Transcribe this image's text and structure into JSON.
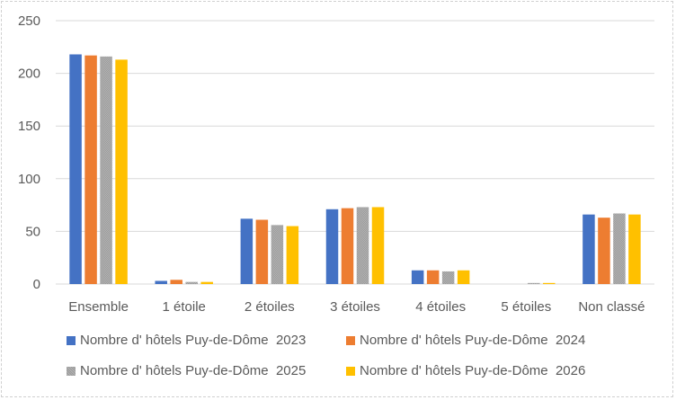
{
  "chart_data": {
    "type": "bar",
    "title": "",
    "xlabel": "",
    "ylabel": "",
    "ylim": [
      0,
      250
    ],
    "yticks": [
      0,
      50,
      100,
      150,
      200,
      250
    ],
    "grid": true,
    "legend_position": "bottom",
    "categories": [
      "Ensemble",
      "1 étoile",
      "2 étoiles",
      "3 étoiles",
      "4 étoiles",
      "5 étoiles",
      "Non classé"
    ],
    "series": [
      {
        "name": "Nombre d' hôtels Puy-de-Dôme  2023",
        "color": "#4472C4",
        "values": [
          218,
          3,
          62,
          71,
          13,
          0,
          66
        ]
      },
      {
        "name": "Nombre d' hôtels Puy-de-Dôme  2024",
        "color": "#ED7D31",
        "values": [
          217,
          4,
          61,
          72,
          13,
          0,
          63
        ]
      },
      {
        "name": "Nombre d' hôtels Puy-de-Dôme  2025",
        "color": "#A5A5A5",
        "values": [
          216,
          2,
          56,
          73,
          12,
          1,
          67
        ]
      },
      {
        "name": "Nombre d' hôtels Puy-de-Dôme  2026",
        "color": "#FFC000",
        "values": [
          213,
          2,
          55,
          73,
          13,
          1,
          66
        ]
      }
    ]
  },
  "legend": {
    "items": [
      {
        "label": "Nombre d' hôtels Puy-de-Dôme  2023",
        "color": "#4472C4"
      },
      {
        "label": "Nombre d' hôtels Puy-de-Dôme  2024",
        "color": "#ED7D31"
      },
      {
        "label": "Nombre d' hôtels Puy-de-Dôme  2025",
        "color": "#A5A5A5"
      },
      {
        "label": "Nombre d' hôtels Puy-de-Dôme  2026",
        "color": "#FFC000"
      }
    ]
  }
}
